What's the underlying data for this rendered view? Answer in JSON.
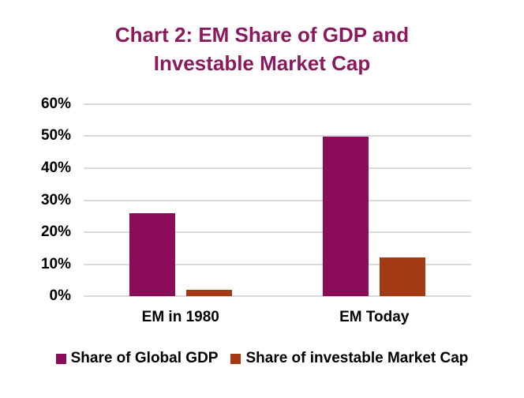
{
  "page": {
    "background": "#ffffff"
  },
  "chart": {
    "title_line1": "Chart 2: EM Share of GDP and",
    "title_line2": "Investable Market Cap",
    "title_color": "#8A1A5B",
    "grid_color": "#D9D9D9",
    "axis_text_color": "#000000"
  },
  "chart_data": {
    "type": "bar",
    "title": "Chart 2: EM Share of GDP and Investable Market Cap",
    "categories": [
      "EM in 1980",
      "EM Today"
    ],
    "series": [
      {
        "name": "Share of Global GDP",
        "color": "#8B0D5A",
        "values": [
          26,
          50
        ]
      },
      {
        "name": "Share of investable Market Cap",
        "color": "#A33A14",
        "values": [
          2,
          12
        ]
      }
    ],
    "ylim": [
      0,
      60
    ],
    "yticks": [
      "0%",
      "10%",
      "20%",
      "30%",
      "40%",
      "50%",
      "60%"
    ],
    "grid": "on",
    "legend_position": "bottom"
  }
}
